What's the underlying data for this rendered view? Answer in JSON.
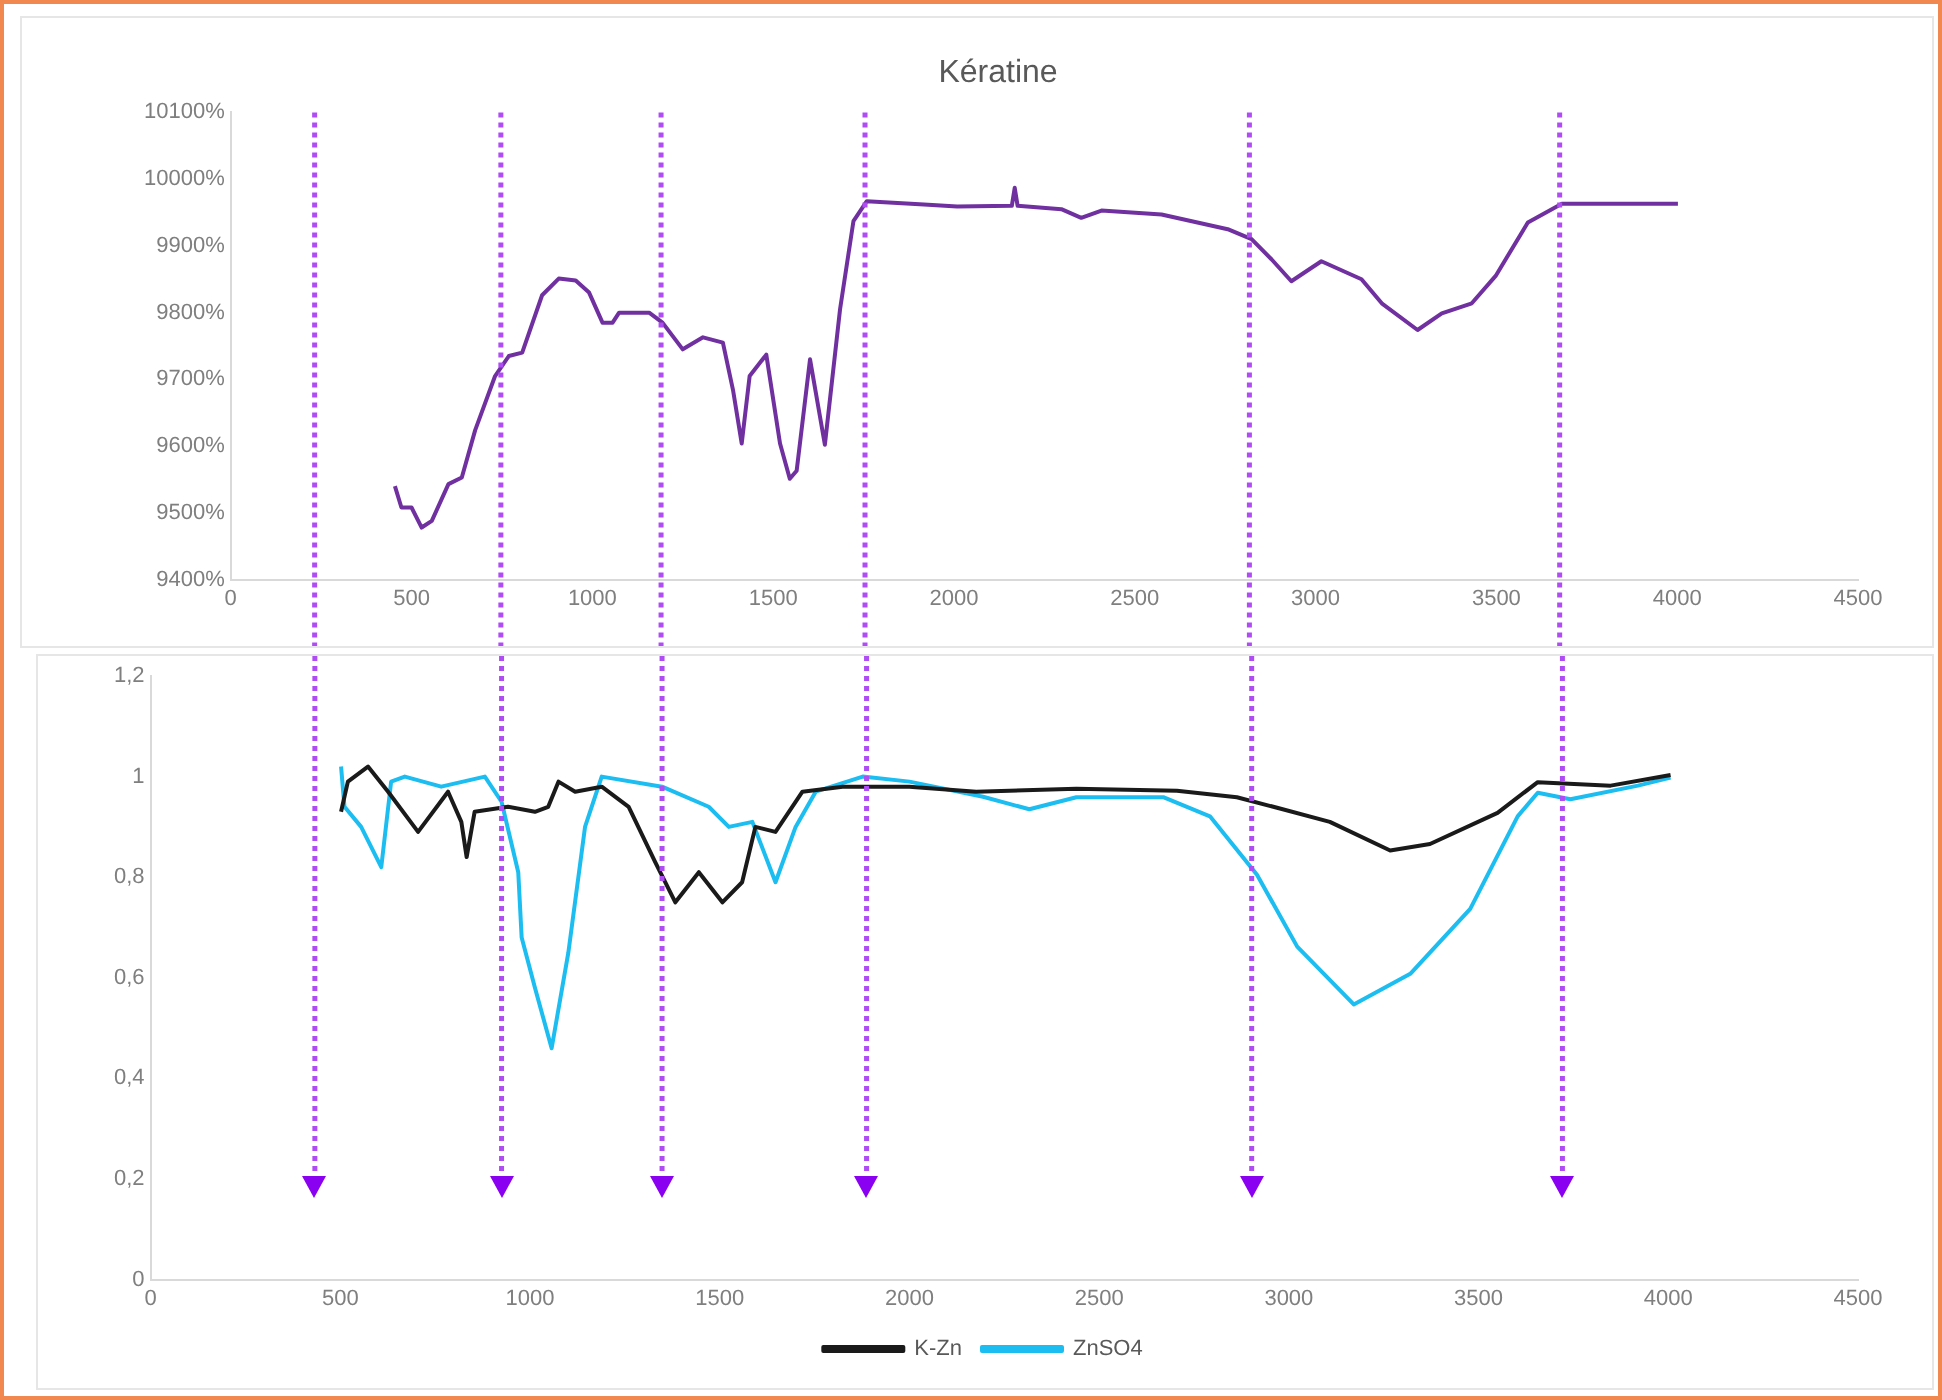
{
  "chart_data": [
    {
      "type": "line",
      "title": "Kératine",
      "series": [
        {
          "color": "#7030a0",
          "x": [
            454,
            472,
            500,
            528,
            556,
            602,
            639,
            676,
            731,
            769,
            806,
            861,
            907,
            954,
            991,
            1028,
            1056,
            1074,
            1157,
            1194,
            1250,
            1306,
            1361,
            1389,
            1413,
            1435,
            1481,
            1519,
            1546,
            1565,
            1602,
            1643,
            1685,
            1722,
            1759,
            1917,
            2009,
            2160,
            2168,
            2176,
            2297,
            2352,
            2408,
            2574,
            2757,
            2823,
            2878,
            2933,
            3016,
            3127,
            3183,
            3282,
            3349,
            3432,
            3498,
            3587,
            3681,
            3864,
            4002
          ],
          "values": [
            9540,
            9508,
            9508,
            9478,
            9488,
            9543,
            9553,
            9624,
            9705,
            9735,
            9740,
            9826,
            9851,
            9848,
            9830,
            9785,
            9785,
            9800,
            9800,
            9785,
            9745,
            9763,
            9755,
            9684,
            9604,
            9705,
            9737,
            9604,
            9551,
            9563,
            9730,
            9602,
            9805,
            9937,
            9967,
            9962,
            9959,
            9960,
            9987,
            9960,
            9955,
            9942,
            9953,
            9947,
            9925,
            9910,
            9880,
            9847,
            9877,
            9850,
            9814,
            9774,
            9799,
            9814,
            9855,
            9935,
            9963,
            9963,
            9963
          ]
        }
      ],
      "xlim": [
        0,
        4500
      ],
      "xticks": [
        0,
        500,
        1000,
        1500,
        2000,
        2500,
        3000,
        3500,
        4000,
        4500
      ],
      "ref_lines": [
        {
          "axis": "x",
          "value": 232,
          "color": "#b04cf5",
          "line_style": "dotted"
        },
        {
          "axis": "x",
          "value": 747,
          "color": "#b04cf5",
          "line_style": "dotted"
        },
        {
          "axis": "x",
          "value": 1190,
          "color": "#b04cf5",
          "line_style": "dotted"
        },
        {
          "axis": "x",
          "value": 1754,
          "color": "#b04cf5",
          "line_style": "dotted"
        },
        {
          "axis": "x",
          "value": 2817,
          "color": "#b04cf5",
          "line_style": "dotted"
        },
        {
          "axis": "x",
          "value": 3675,
          "color": "#b04cf5",
          "line_style": "dotted"
        }
      ],
      "ylim": [
        9400,
        10100
      ],
      "yticks": [
        {
          "value": 9400,
          "label": "9400%"
        },
        {
          "value": 9500,
          "label": "9500%"
        },
        {
          "value": 9600,
          "label": "9600%"
        },
        {
          "value": 9700,
          "label": "9700%"
        },
        {
          "value": 9800,
          "label": "9800%"
        },
        {
          "value": 9900,
          "label": "9900%"
        },
        {
          "value": 10000,
          "label": "10000%"
        },
        {
          "value": 10100,
          "label": "10100%"
        }
      ]
    },
    {
      "type": "line",
      "legend": "bottom",
      "series": [
        {
          "name": "K-Zn",
          "color": "#1a1a1a",
          "x": [
            502,
            520,
            573,
            626,
            705,
            784,
            819,
            833,
            854,
            942,
            1013,
            1048,
            1075,
            1119,
            1189,
            1260,
            1330,
            1383,
            1445,
            1507,
            1559,
            1594,
            1647,
            1718,
            1824,
            2000,
            2176,
            2440,
            2705,
            2863,
            2969,
            3108,
            3267,
            3372,
            3550,
            3656,
            3848,
            4006
          ],
          "values": [
            0.93,
            0.99,
            1.02,
            0.97,
            0.89,
            0.97,
            0.91,
            0.84,
            0.93,
            0.94,
            0.93,
            0.94,
            0.99,
            0.97,
            0.98,
            0.94,
            0.83,
            0.75,
            0.81,
            0.75,
            0.79,
            0.9,
            0.89,
            0.97,
            0.98,
            0.98,
            0.97,
            0.976,
            0.972,
            0.959,
            0.938,
            0.91,
            0.853,
            0.866,
            0.928,
            0.989,
            0.982,
            1.003
          ]
        },
        {
          "name": "ZnSO4",
          "color": "#1cbdf0",
          "x": [
            502,
            511,
            555,
            608,
            634,
            670,
            766,
            881,
            925,
            969,
            978,
            1013,
            1057,
            1101,
            1145,
            1189,
            1348,
            1471,
            1524,
            1586,
            1647,
            1700,
            1753,
            1877,
            2000,
            2194,
            2316,
            2440,
            2669,
            2792,
            2916,
            3022,
            3171,
            3320,
            3478,
            3603,
            3656,
            3742,
            3920,
            4006
          ],
          "values": [
            1.02,
            0.94,
            0.9,
            0.82,
            0.99,
            1.0,
            0.98,
            1.0,
            0.95,
            0.81,
            0.68,
            0.58,
            0.46,
            0.65,
            0.9,
            1.0,
            0.98,
            0.94,
            0.9,
            0.91,
            0.79,
            0.9,
            0.97,
            1.0,
            0.99,
            0.96,
            0.935,
            0.959,
            0.959,
            0.921,
            0.805,
            0.662,
            0.547,
            0.608,
            0.737,
            0.921,
            0.968,
            0.955,
            0.982,
            0.998
          ]
        }
      ],
      "xlim": [
        0,
        4500
      ],
      "xticks": [
        0,
        500,
        1000,
        1500,
        2000,
        2500,
        3000,
        3500,
        4000,
        4500
      ],
      "ref_lines": [
        {
          "axis": "x",
          "value": 433,
          "color": "#b04cf5",
          "line_style": "dotted"
        },
        {
          "axis": "x",
          "value": 925,
          "color": "#b04cf5",
          "line_style": "dotted"
        },
        {
          "axis": "x",
          "value": 1348,
          "color": "#b04cf5",
          "line_style": "dotted"
        },
        {
          "axis": "x",
          "value": 1887,
          "color": "#b04cf5",
          "line_style": "dotted"
        },
        {
          "axis": "x",
          "value": 2902,
          "color": "#b04cf5",
          "line_style": "dotted"
        },
        {
          "axis": "x",
          "value": 3721,
          "color": "#b04cf5",
          "line_style": "dotted"
        }
      ],
      "ylim": [
        0,
        1.2
      ],
      "yticks": [
        0,
        {
          "value": 0.2,
          "label": "0,2"
        },
        {
          "value": 0.4,
          "label": "0,4"
        },
        {
          "value": 0.6,
          "label": "0,6"
        },
        {
          "value": 0.8,
          "label": "0,8"
        },
        1,
        {
          "value": 1.2,
          "label": "1,2"
        }
      ]
    }
  ]
}
